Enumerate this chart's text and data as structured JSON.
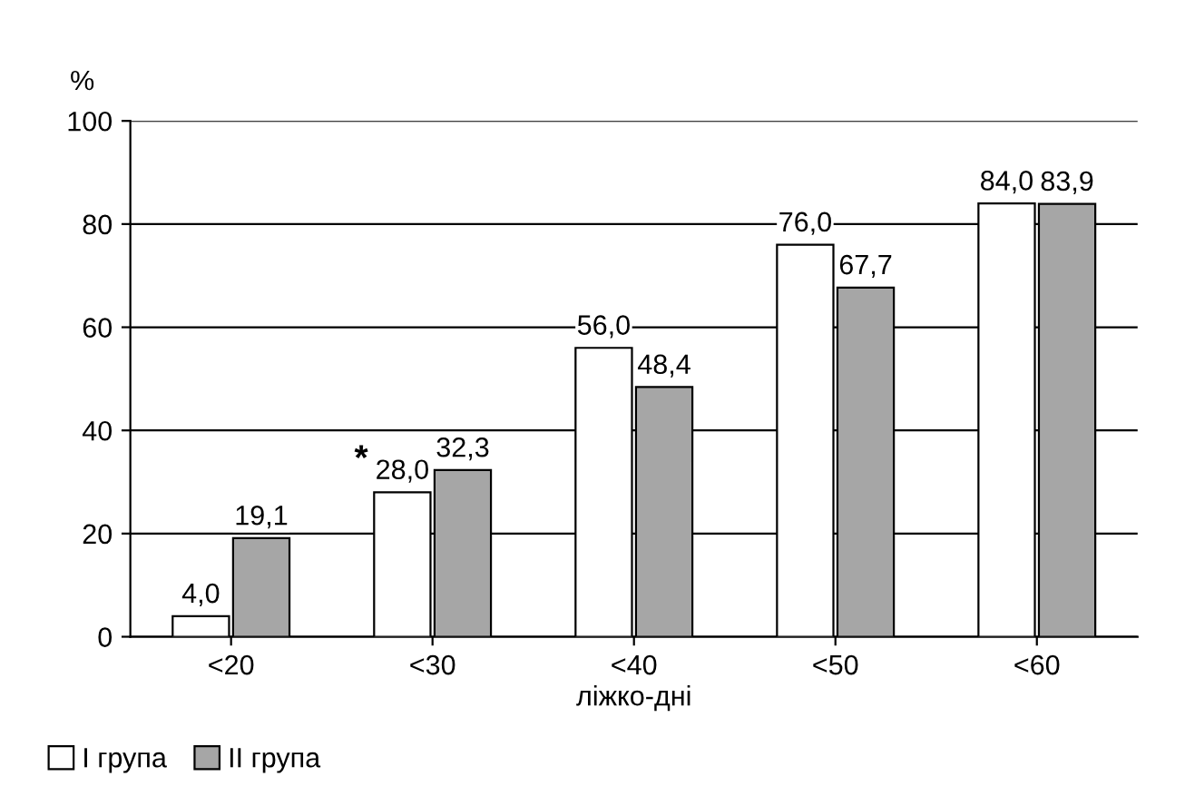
{
  "chart_data": {
    "type": "bar",
    "ylabel": "%",
    "xlabel": "ліжко-дні",
    "categories": [
      "<20",
      "<30",
      "<40",
      "<50",
      "<60"
    ],
    "series": [
      {
        "name": "I група",
        "color": "#ffffff",
        "values": [
          4.0,
          28.0,
          56.0,
          76.0,
          84.0
        ],
        "value_labels": [
          "4,0",
          "28,0",
          "56,0",
          "76,0",
          "84,0"
        ]
      },
      {
        "name": "II група",
        "color": "#a6a6a6",
        "values": [
          19.1,
          32.3,
          48.4,
          67.7,
          83.9
        ],
        "value_labels": [
          "19,1",
          "32,3",
          "48,4",
          "67,7",
          "83,9"
        ]
      }
    ],
    "ylim": [
      0,
      100
    ],
    "yticks": [
      0,
      20,
      40,
      60,
      80,
      100
    ],
    "grid": "y",
    "legend": "bottom left",
    "annotations": [
      {
        "text": "*",
        "x": "<30",
        "y": 28.0
      }
    ]
  }
}
